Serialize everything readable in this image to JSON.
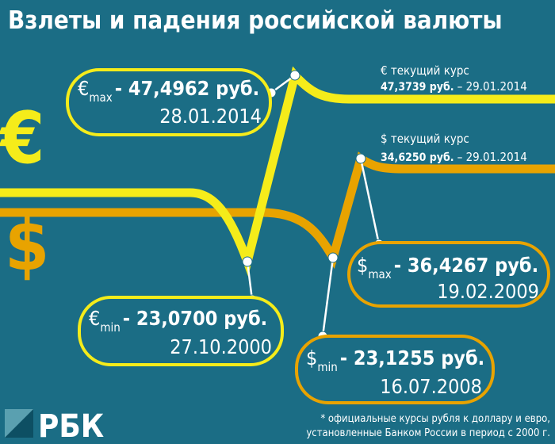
{
  "title": "Взлеты и падения российской валюты",
  "euro": {
    "symbol": "€",
    "current": {
      "label": "€ текущий курс",
      "value": "47,3739 руб.",
      "date": "– 29.01.2014"
    },
    "max": {
      "symbol": "€",
      "subscript": "max",
      "value": "- 47,4962 руб.",
      "date": "28.01.2014"
    },
    "min": {
      "symbol": "€",
      "subscript": "min",
      "value": "- 23,0700 руб.",
      "date": "27.10.2000"
    }
  },
  "dollar": {
    "symbol": "$",
    "current": {
      "label": "$ текущий курс",
      "value": "34,6250 руб.",
      "date": "– 29.01.2014"
    },
    "max": {
      "symbol": "$",
      "subscript": "max",
      "value": "- 36,4267 руб.",
      "date": "19.02.2009"
    },
    "min": {
      "symbol": "$",
      "subscript": "min",
      "value": "- 23,1255 руб.",
      "date": "16.07.2008"
    }
  },
  "footnote": [
    "* официальные курсы рубля к доллару и евро,",
    "установленные Банком России в период с 2000 г."
  ],
  "logo": "РБК"
}
